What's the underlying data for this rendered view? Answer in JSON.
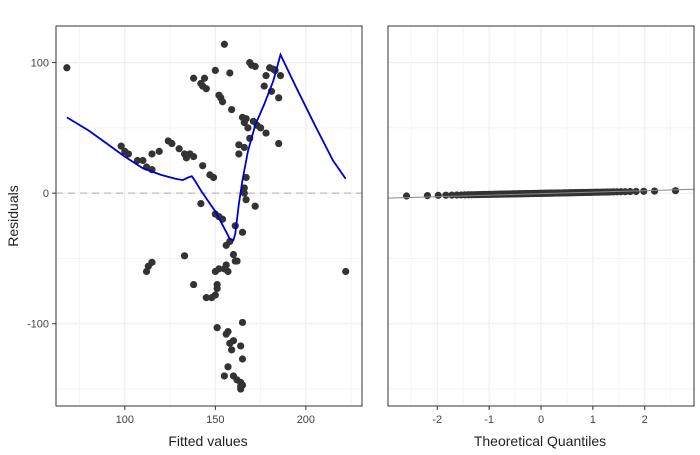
{
  "chart_data": [
    {
      "type": "scatter",
      "xlabel": "Fitted values",
      "ylabel": "Residuals",
      "xlim": [
        62,
        231
      ],
      "ylim": [
        -163,
        128
      ],
      "xticks": [
        100,
        150,
        200
      ],
      "yticks": [
        -100,
        0,
        100
      ],
      "xtick_labels": [
        "100",
        "150",
        "200"
      ],
      "ytick_labels": [
        "-100",
        "0",
        "100"
      ],
      "grid": true,
      "reference_line": 0,
      "point_color": "#333333",
      "smooth_color": "#0000cc",
      "points": [
        [
          68,
          96
        ],
        [
          98,
          36
        ],
        [
          100,
          32
        ],
        [
          102,
          30
        ],
        [
          107,
          25
        ],
        [
          110,
          25
        ],
        [
          112,
          20
        ],
        [
          115,
          30
        ],
        [
          113,
          -56
        ],
        [
          112,
          -60
        ],
        [
          115,
          -53
        ],
        [
          115,
          18
        ],
        [
          119,
          32
        ],
        [
          124,
          40
        ],
        [
          126,
          38
        ],
        [
          130,
          34
        ],
        [
          133,
          30
        ],
        [
          134,
          27
        ],
        [
          136,
          30
        ],
        [
          138,
          28
        ],
        [
          133,
          -48
        ],
        [
          138,
          -70
        ],
        [
          138,
          88
        ],
        [
          142,
          84
        ],
        [
          143,
          82
        ],
        [
          144,
          88
        ],
        [
          145,
          80
        ],
        [
          143,
          21
        ],
        [
          142,
          -8
        ],
        [
          145,
          -80
        ],
        [
          147,
          14
        ],
        [
          149,
          12
        ],
        [
          148,
          -80
        ],
        [
          150,
          -78
        ],
        [
          151,
          -73
        ],
        [
          151,
          -70
        ],
        [
          150,
          -16
        ],
        [
          150,
          -60
        ],
        [
          151,
          -103
        ],
        [
          150,
          94
        ],
        [
          152,
          75
        ],
        [
          153,
          73
        ],
        [
          154,
          70
        ],
        [
          155,
          114
        ],
        [
          152,
          -18
        ],
        [
          152,
          -58
        ],
        [
          154,
          -20
        ],
        [
          155,
          -58
        ],
        [
          156,
          -108
        ],
        [
          156,
          -40
        ],
        [
          156,
          -55
        ],
        [
          157,
          -106
        ],
        [
          157,
          -60
        ],
        [
          158,
          92
        ],
        [
          158,
          -37
        ],
        [
          158,
          -115
        ],
        [
          159,
          64
        ],
        [
          159,
          -120
        ],
        [
          160,
          -113
        ],
        [
          160,
          -47
        ],
        [
          161,
          -52
        ],
        [
          161,
          -25
        ],
        [
          160,
          -140
        ],
        [
          155,
          -140
        ],
        [
          157,
          -133
        ],
        [
          162,
          -143
        ],
        [
          162,
          -52
        ],
        [
          163,
          30
        ],
        [
          163,
          37
        ],
        [
          164,
          -117
        ],
        [
          164,
          -145
        ],
        [
          164,
          -148
        ],
        [
          164,
          -150
        ],
        [
          165,
          -147
        ],
        [
          165,
          -127
        ],
        [
          165,
          -99
        ],
        [
          165,
          -30
        ],
        [
          165,
          58
        ],
        [
          166,
          54
        ],
        [
          166,
          4
        ],
        [
          166,
          0
        ],
        [
          166,
          35
        ],
        [
          167,
          57
        ],
        [
          167,
          12
        ],
        [
          167,
          -5
        ],
        [
          168,
          50
        ],
        [
          169,
          42
        ],
        [
          169,
          100
        ],
        [
          170,
          98
        ],
        [
          171,
          55
        ],
        [
          172,
          97
        ],
        [
          172,
          -10
        ],
        [
          173,
          52
        ],
        [
          175,
          50
        ],
        [
          177,
          82
        ],
        [
          178,
          90
        ],
        [
          178,
          46
        ],
        [
          180,
          96
        ],
        [
          181,
          78
        ],
        [
          182,
          95
        ],
        [
          183,
          94
        ],
        [
          185,
          73
        ],
        [
          185,
          38
        ],
        [
          186,
          90
        ],
        [
          222,
          -60
        ]
      ],
      "smooth": [
        [
          68,
          58
        ],
        [
          80,
          48
        ],
        [
          90,
          38
        ],
        [
          100,
          28
        ],
        [
          110,
          19
        ],
        [
          120,
          14
        ],
        [
          128,
          11
        ],
        [
          132,
          10
        ],
        [
          135,
          12
        ],
        [
          137,
          13
        ],
        [
          139,
          9
        ],
        [
          142,
          2
        ],
        [
          146,
          -6
        ],
        [
          150,
          -14
        ],
        [
          155,
          -27
        ],
        [
          158,
          -35
        ],
        [
          160,
          -36
        ],
        [
          161,
          -31
        ],
        [
          163,
          -8
        ],
        [
          165,
          10
        ],
        [
          168,
          32
        ],
        [
          172,
          52
        ],
        [
          177,
          68
        ],
        [
          182,
          86
        ],
        [
          186,
          106
        ],
        [
          195,
          80
        ],
        [
          205,
          52
        ],
        [
          215,
          25
        ],
        [
          222,
          11
        ]
      ]
    },
    {
      "type": "scatter",
      "xlabel": "Theoretical Quantiles",
      "ylabel": "",
      "xlim": [
        -2.95,
        2.95
      ],
      "ylim": [
        -163,
        128
      ],
      "xticks": [
        -2,
        -1,
        0,
        1,
        2
      ],
      "xtick_labels": [
        "-2",
        "-1",
        "0",
        "1",
        "2"
      ],
      "grid": true,
      "point_color": "#333333",
      "line_color": "#888888",
      "points_summary": "dense band of residual quantiles near zero (about -2 to 2)",
      "qq_n": 105,
      "qq_low": -2.2,
      "qq_high": 1.9,
      "reference_line": [
        [
          -2.95,
          -3.8
        ],
        [
          2.95,
          3.0
        ]
      ]
    }
  ]
}
